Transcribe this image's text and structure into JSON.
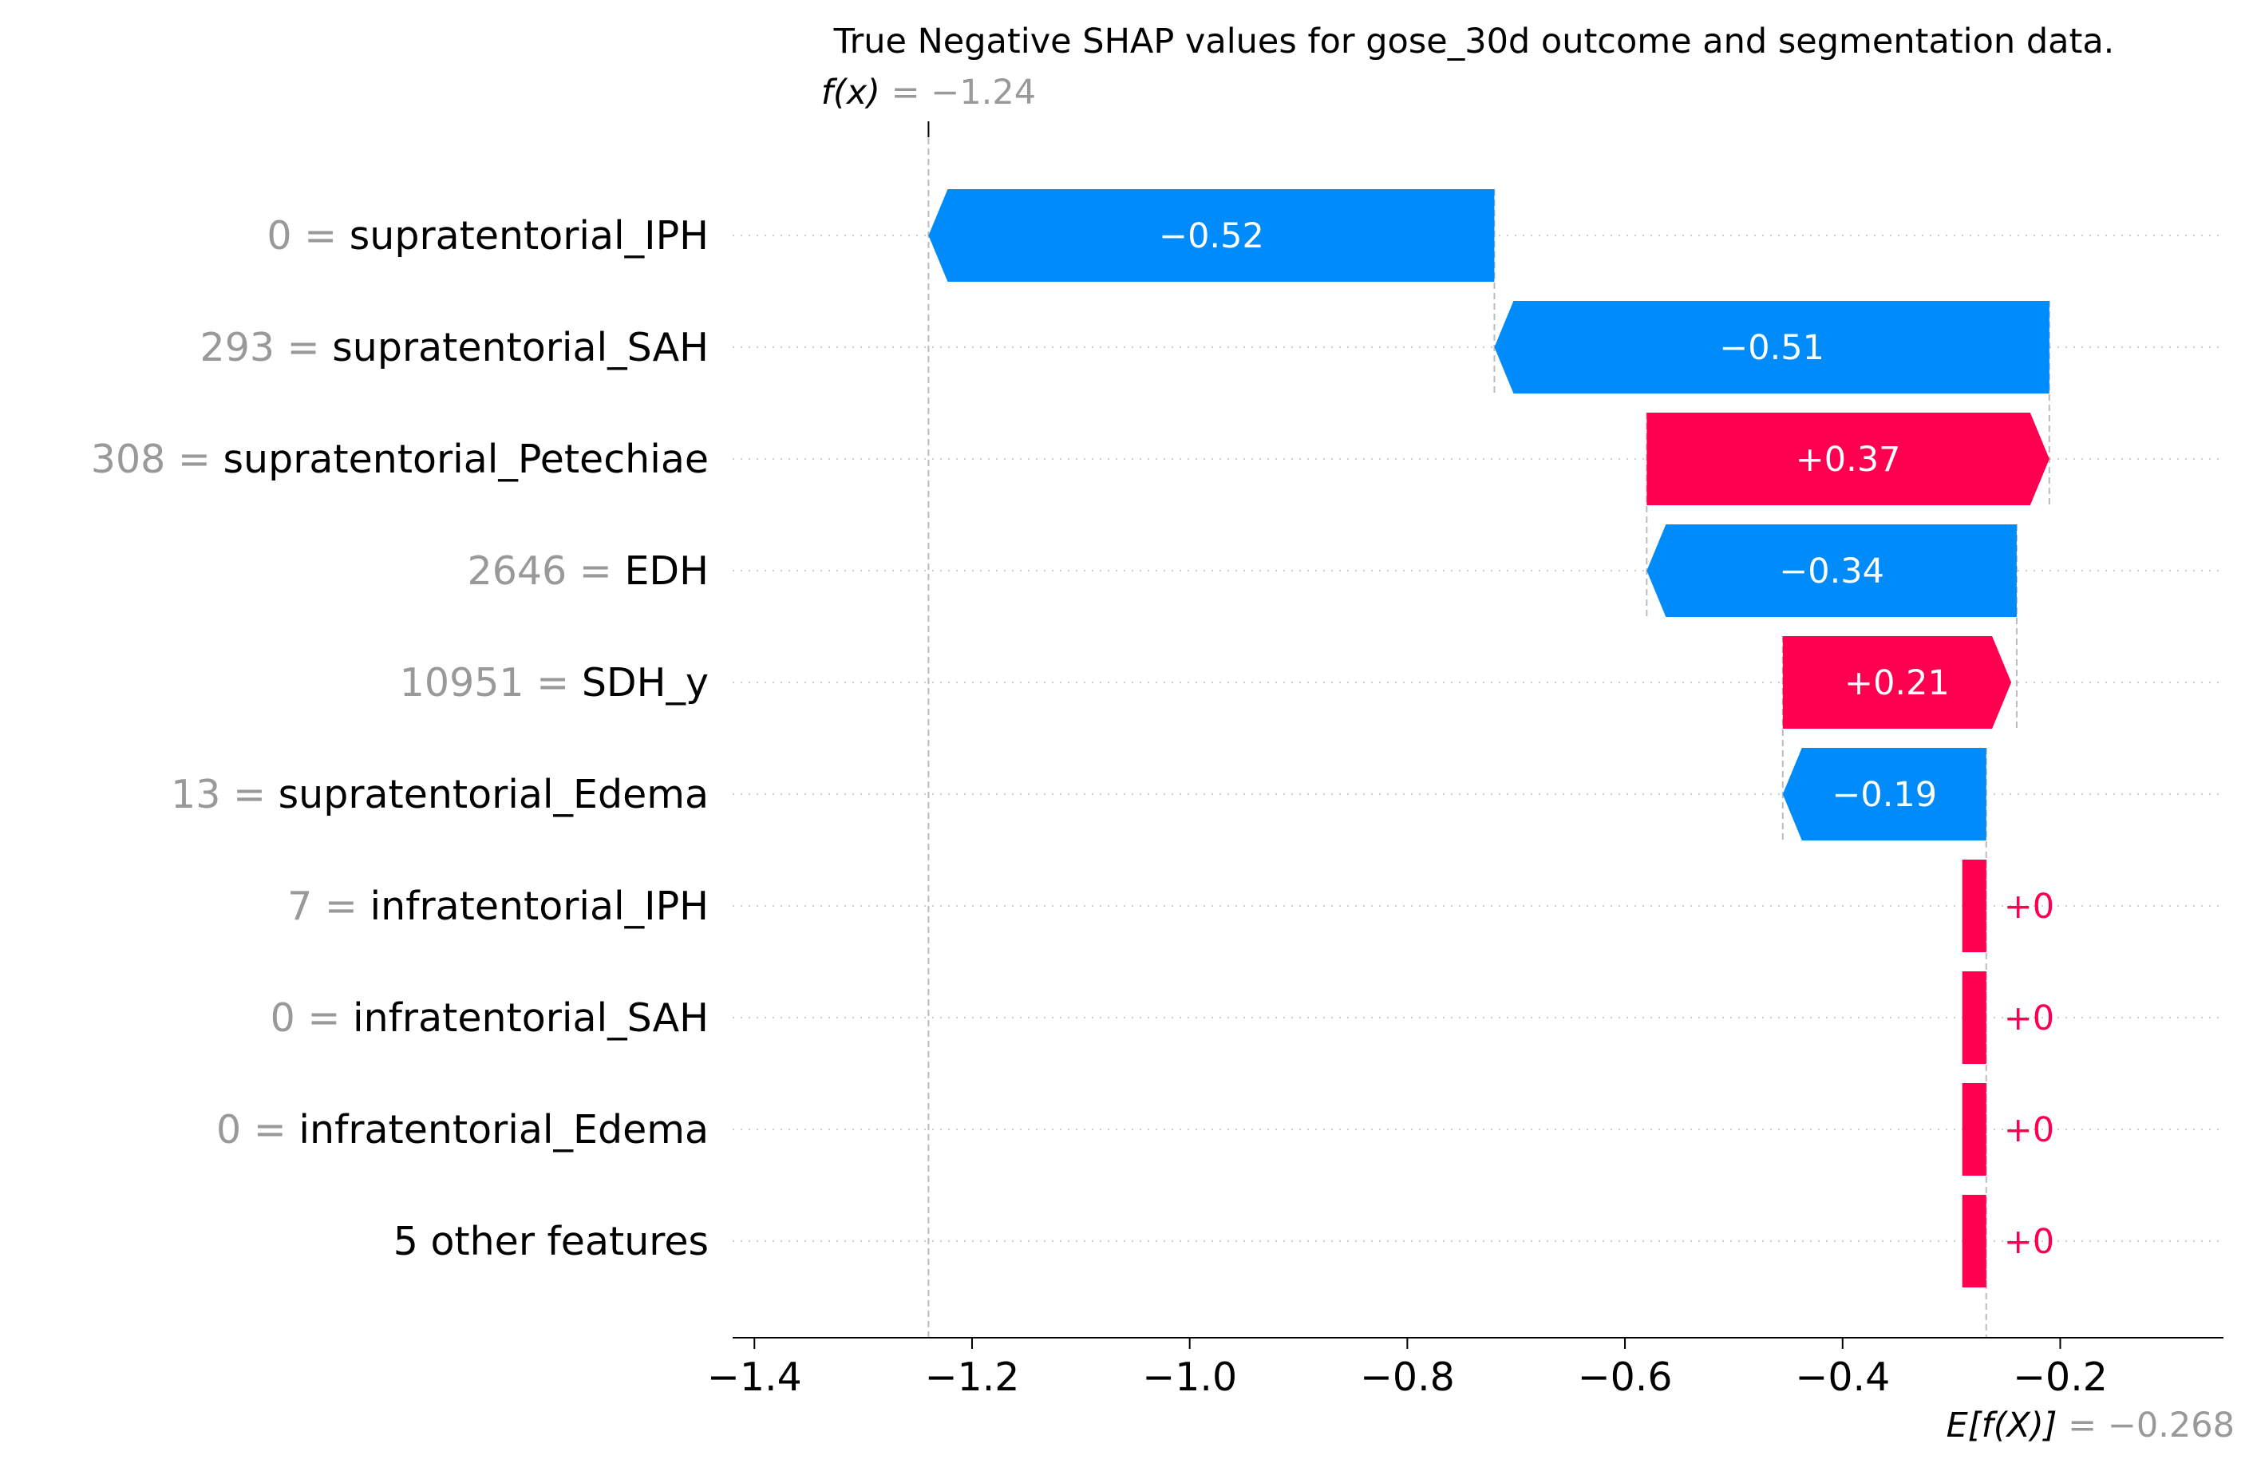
{
  "chart_data": {
    "type": "waterfall",
    "title": "True Negative SHAP values for gose_30d outcome and segmentation data.",
    "fx": {
      "label": "f(x)",
      "value_text": "= −1.24",
      "value": -1.24
    },
    "base": {
      "label": "E[f(X)]",
      "value_text": "= −0.268",
      "value": -0.268
    },
    "xlim": [
      -1.42,
      -0.05
    ],
    "xticks": [
      {
        "value": -1.4,
        "label": "−1.4"
      },
      {
        "value": -1.2,
        "label": "−1.2"
      },
      {
        "value": -1.0,
        "label": "−1.0"
      },
      {
        "value": -0.8,
        "label": "−0.8"
      },
      {
        "value": -0.6,
        "label": "−0.6"
      },
      {
        "value": -0.4,
        "label": "−0.4"
      },
      {
        "value": -0.2,
        "label": "−0.2"
      }
    ],
    "features": [
      {
        "value": "0",
        "name": "supratentorial_IPH",
        "start": -0.72,
        "end": -1.24,
        "shap": -0.52,
        "label": "−0.52"
      },
      {
        "value": "293",
        "name": "supratentorial_SAH",
        "start": -0.21,
        "end": -0.72,
        "shap": -0.51,
        "label": "−0.51"
      },
      {
        "value": "308",
        "name": "supratentorial_Petechiae",
        "start": -0.58,
        "end": -0.21,
        "shap": 0.37,
        "label": "+0.37"
      },
      {
        "value": "2646",
        "name": "EDH",
        "start": -0.24,
        "end": -0.58,
        "shap": -0.34,
        "label": "−0.34"
      },
      {
        "value": "10951",
        "name": "SDH_y",
        "start": -0.455,
        "end": -0.245,
        "shap": 0.21,
        "label": "+0.21"
      },
      {
        "value": "13",
        "name": "supratentorial_Edema",
        "start": -0.268,
        "end": -0.455,
        "shap": -0.19,
        "label": "−0.19"
      },
      {
        "value": "7",
        "name": "infratentorial_IPH",
        "start": -0.268,
        "end": -0.268,
        "shap": 0,
        "label": "+0"
      },
      {
        "value": "0",
        "name": "infratentorial_SAH",
        "start": -0.268,
        "end": -0.268,
        "shap": 0,
        "label": "+0"
      },
      {
        "value": "0",
        "name": "infratentorial_Edema",
        "start": -0.268,
        "end": -0.268,
        "shap": 0,
        "label": "+0"
      },
      {
        "value": "",
        "name": "5 other features",
        "start": -0.268,
        "end": -0.268,
        "shap": 0,
        "label": "+0"
      }
    ],
    "colors": {
      "negative": "#008bfb",
      "positive": "#ff0051",
      "muted": "#999999",
      "grid": "#cccccc"
    }
  }
}
